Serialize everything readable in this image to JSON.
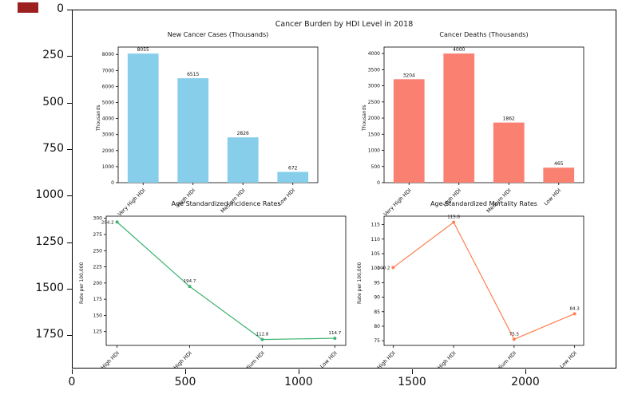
{
  "window": {
    "marker_color": "#9c2020"
  },
  "figure": {
    "suptitle": "Cancer Burden by HDI Level in 2018"
  },
  "outer_axes": {
    "y_tick_labels": [
      "0",
      "250",
      "500",
      "750",
      "1000",
      "1250",
      "1500",
      "1750"
    ],
    "x_tick_labels": [
      "0",
      "500",
      "1000",
      "1500",
      "2000"
    ]
  },
  "chart_data": [
    {
      "type": "bar",
      "title": "New Cancer Cases (Thousands)",
      "xlabel": "",
      "ylabel": "Thousands",
      "categories": [
        "Very High HDI",
        "High HDI",
        "Medium HDI",
        "Low HDI"
      ],
      "values": [
        8055,
        6515,
        2826,
        672
      ],
      "yticks": [
        0,
        1000,
        2000,
        3000,
        4000,
        5000,
        6000,
        7000,
        8000
      ],
      "ylim": [
        0,
        8460
      ],
      "grid": false,
      "color": "#87ceeb"
    },
    {
      "type": "bar",
      "title": "Cancer Deaths (Thousands)",
      "xlabel": "",
      "ylabel": "Thousands",
      "categories": [
        "Very High HDI",
        "High HDI",
        "Medium HDI",
        "Low HDI"
      ],
      "values": [
        3204,
        4000,
        1862,
        465
      ],
      "yticks": [
        0,
        500,
        1000,
        1500,
        2000,
        2500,
        3000,
        3500,
        4000
      ],
      "ylim": [
        0,
        4200
      ],
      "grid": false,
      "color": "#fa8072"
    },
    {
      "type": "line",
      "title": "Age Standardized Incidence Rates",
      "xlabel": "",
      "ylabel": "Rate per 100,000",
      "categories": [
        "Very High HDI",
        "High HDI",
        "Medium HDI",
        "Low HDI"
      ],
      "values": [
        294.2,
        194.7,
        112.8,
        114.7
      ],
      "yticks": [
        125,
        150,
        175,
        200,
        225,
        250,
        275,
        300
      ],
      "ylim": [
        103.7,
        303.3
      ],
      "grid": false,
      "color": "#3cb371"
    },
    {
      "type": "line",
      "title": "Age Standardized Mortality Rates",
      "xlabel": "",
      "ylabel": "Rate per 100,000",
      "categories": [
        "Very High HDI",
        "High HDI",
        "Medium HDI",
        "Low HDI"
      ],
      "values": [
        100.2,
        115.8,
        75.5,
        84.3
      ],
      "yticks": [
        75,
        80,
        85,
        90,
        95,
        100,
        105,
        110,
        115
      ],
      "ylim": [
        73.4,
        117.9
      ],
      "grid": false,
      "color": "#ff7f50"
    }
  ]
}
